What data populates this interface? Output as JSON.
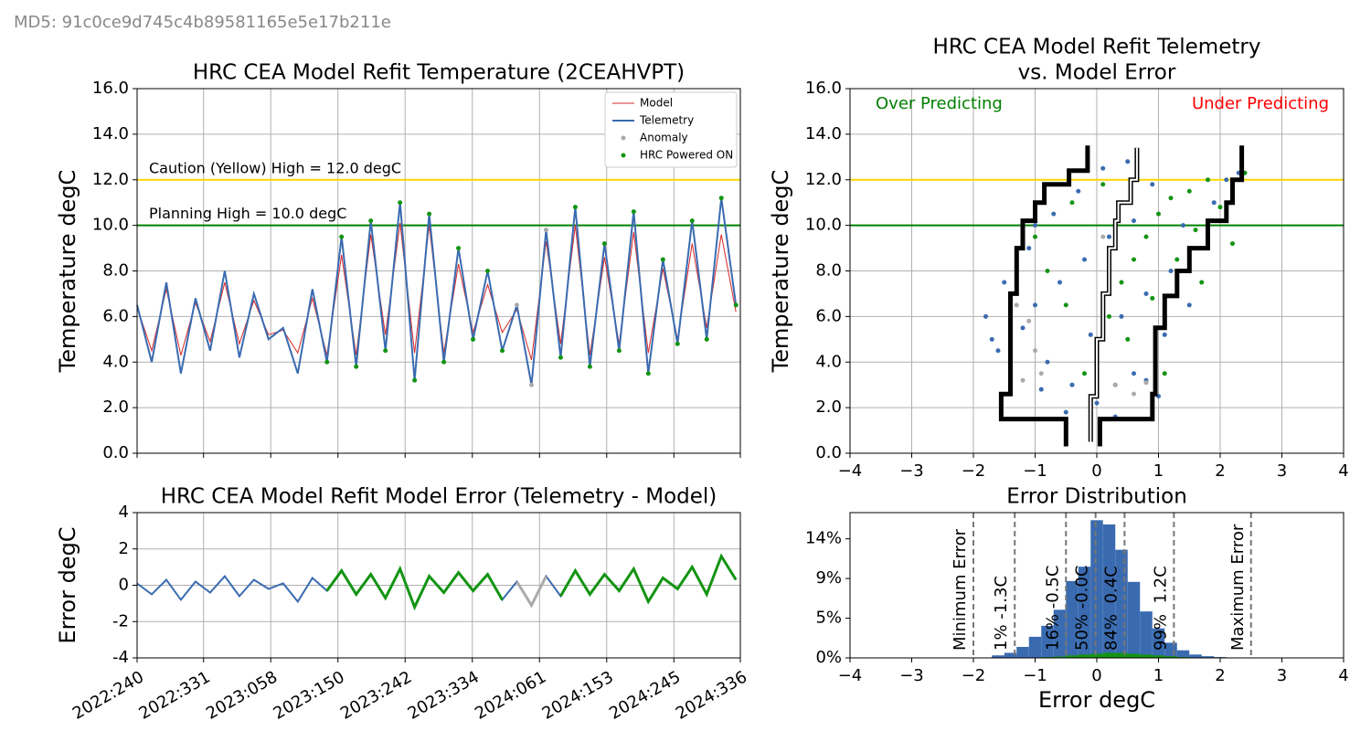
{
  "header": {
    "text": "MD5: 91c0ce9d745c4b89581165e5e17b211e"
  },
  "chart_data": [
    {
      "type": "line",
      "title": "HRC CEA Model Refit Temperature (2CEAHVPT)",
      "ylabel": "Temperature degC",
      "x": [
        "2022:240",
        "2022:260",
        "2022:280",
        "2022:300",
        "2022:320",
        "2022:340",
        "2022:360",
        "2023:015",
        "2023:035",
        "2023:055",
        "2023:075",
        "2023:095",
        "2023:115",
        "2023:135",
        "2023:155",
        "2023:175",
        "2023:195",
        "2023:215",
        "2023:235",
        "2023:255",
        "2023:275",
        "2023:295",
        "2023:315",
        "2023:335",
        "2023:355",
        "2024:010",
        "2024:030",
        "2024:050",
        "2024:070",
        "2024:090",
        "2024:110",
        "2024:130",
        "2024:150",
        "2024:170",
        "2024:190",
        "2024:210",
        "2024:230",
        "2024:250",
        "2024:270",
        "2024:290",
        "2024:310",
        "2024:330"
      ],
      "series": [
        {
          "name": "Model",
          "color": "#d62728",
          "marker": "line",
          "width": 1,
          "values": [
            6.4,
            4.5,
            7.2,
            4.3,
            6.6,
            4.9,
            7.5,
            4.8,
            6.7,
            5.2,
            5.4,
            4.4,
            6.8,
            4.3,
            8.7,
            4.3,
            9.6,
            5.2,
            10.1,
            4.4,
            10.0,
            4.4,
            8.3,
            5.3,
            7.4,
            5.3,
            6.3,
            4.1,
            9.3,
            4.8,
            10.0,
            4.3,
            8.6,
            4.8,
            9.7,
            4.4,
            8.1,
            5.0,
            9.2,
            5.5,
            9.6,
            6.2
          ]
        },
        {
          "name": "Telemetry",
          "color": "#3a6bb0",
          "marker": "line",
          "width": 2,
          "values": [
            6.5,
            4.0,
            7.5,
            3.5,
            6.8,
            4.5,
            8.0,
            4.2,
            7.0,
            5.0,
            5.5,
            3.5,
            7.2,
            4.0,
            9.5,
            3.8,
            10.2,
            4.5,
            11.0,
            3.2,
            10.5,
            4.0,
            9.0,
            5.0,
            8.0,
            4.5,
            6.5,
            3.0,
            9.8,
            4.2,
            10.8,
            3.8,
            9.2,
            4.5,
            10.6,
            3.5,
            8.5,
            4.8,
            10.2,
            5.0,
            11.2,
            6.5
          ]
        },
        {
          "name": "Anomaly",
          "color": "#aaaaaa",
          "marker": "dot",
          "values": [
            null,
            null,
            null,
            null,
            null,
            null,
            null,
            null,
            null,
            null,
            null,
            null,
            null,
            null,
            null,
            null,
            null,
            null,
            null,
            null,
            null,
            null,
            null,
            null,
            null,
            null,
            6.5,
            3.0,
            9.8,
            null,
            null,
            null,
            null,
            null,
            null,
            null,
            null,
            null,
            null,
            null,
            null,
            null
          ]
        },
        {
          "name": "HRC Powered ON",
          "color": "#139413",
          "marker": "dot",
          "values": [
            null,
            null,
            null,
            null,
            null,
            null,
            null,
            null,
            null,
            null,
            null,
            null,
            null,
            4.0,
            9.5,
            3.8,
            10.2,
            4.5,
            11.0,
            3.2,
            10.5,
            4.0,
            9.0,
            5.0,
            8.0,
            4.5,
            null,
            null,
            null,
            4.2,
            10.8,
            3.8,
            9.2,
            4.5,
            10.6,
            3.5,
            8.5,
            4.8,
            10.2,
            5.0,
            11.2,
            6.5
          ]
        }
      ],
      "hlines": [
        {
          "value": 12,
          "color": "#ffd700",
          "label": "Caution (Yellow) High = 12.0 degC"
        },
        {
          "value": 10,
          "color": "#008000",
          "label": "Planning High = 10.0 degC"
        }
      ],
      "xlim": [
        "2022:240",
        "2024:336"
      ],
      "xticks": [
        "2022:240",
        "2022:331",
        "2023:058",
        "2023:150",
        "2023:242",
        "2023:334",
        "2024:061",
        "2024:153",
        "2024:245",
        "2024:336"
      ],
      "show_xtick_labels": false,
      "ylim": [
        0,
        16
      ],
      "yticks": [
        {
          "value": 0,
          "label": "0.0"
        },
        {
          "value": 2,
          "label": "2.0"
        },
        {
          "value": 4,
          "label": "4.0"
        },
        {
          "value": 6,
          "label": "6.0"
        },
        {
          "value": 8,
          "label": "8.0"
        },
        {
          "value": 10,
          "label": "10.0"
        },
        {
          "value": 12,
          "label": "12.0"
        },
        {
          "value": 14,
          "label": "14.0"
        },
        {
          "value": 16,
          "label": "16.0"
        }
      ],
      "grid": true,
      "legend": "upper right"
    },
    {
      "type": "line",
      "title": "HRC CEA Model Refit Model Error (Telemetry - Model)",
      "ylabel": "Error degC",
      "x": [
        "2022:240",
        "2022:260",
        "2022:280",
        "2022:300",
        "2022:320",
        "2022:340",
        "2022:360",
        "2023:015",
        "2023:035",
        "2023:055",
        "2023:075",
        "2023:095",
        "2023:115",
        "2023:135",
        "2023:155",
        "2023:175",
        "2023:195",
        "2023:215",
        "2023:235",
        "2023:255",
        "2023:275",
        "2023:295",
        "2023:315",
        "2023:335",
        "2023:355",
        "2024:010",
        "2024:030",
        "2024:050",
        "2024:070",
        "2024:090",
        "2024:110",
        "2024:130",
        "2024:150",
        "2024:170",
        "2024:190",
        "2024:210",
        "2024:230",
        "2024:250",
        "2024:270",
        "2024:290",
        "2024:310",
        "2024:330"
      ],
      "series": [
        {
          "color": "#3a6bb0",
          "marker": "line",
          "width": 2,
          "values": [
            0.1,
            -0.5,
            0.3,
            -0.8,
            0.2,
            -0.4,
            0.5,
            -0.6,
            0.3,
            -0.2,
            0.1,
            -0.9,
            0.4,
            -0.3,
            0.8,
            -0.5,
            0.6,
            -0.7,
            0.9,
            -1.2,
            0.5,
            -0.4,
            0.7,
            -0.3,
            0.6,
            -0.8,
            0.2,
            -1.1,
            0.5,
            -0.6,
            0.8,
            -0.5,
            0.6,
            -0.3,
            0.9,
            -0.9,
            0.4,
            -0.2,
            1.0,
            -0.5,
            1.6,
            0.3
          ]
        },
        {
          "color": "#aaaaaa",
          "marker": "line",
          "width": 3,
          "values": [
            null,
            null,
            null,
            null,
            null,
            null,
            null,
            null,
            null,
            null,
            null,
            null,
            null,
            null,
            null,
            null,
            null,
            null,
            null,
            null,
            null,
            null,
            null,
            null,
            null,
            null,
            0.2,
            -1.1,
            0.5,
            null,
            null,
            null,
            null,
            null,
            null,
            null,
            null,
            null,
            null,
            null,
            null,
            null
          ]
        },
        {
          "color": "#139413",
          "marker": "line",
          "width": 3,
          "values": [
            null,
            null,
            null,
            null,
            null,
            null,
            null,
            null,
            null,
            null,
            null,
            null,
            null,
            -0.3,
            0.8,
            -0.5,
            0.6,
            -0.7,
            0.9,
            -1.2,
            0.5,
            -0.4,
            0.7,
            -0.3,
            0.6,
            -0.8,
            null,
            null,
            null,
            -0.6,
            0.8,
            -0.5,
            0.6,
            -0.3,
            0.9,
            -0.9,
            0.4,
            -0.2,
            1.0,
            -0.5,
            1.6,
            0.3
          ]
        }
      ],
      "xlim": [
        "2022:240",
        "2024:336"
      ],
      "xticks": [
        "2022:240",
        "2022:331",
        "2023:058",
        "2023:150",
        "2023:242",
        "2023:334",
        "2024:061",
        "2024:153",
        "2024:245",
        "2024:336"
      ],
      "xtick_rotation": 30,
      "ylim": [
        -4,
        4
      ],
      "yticks": [
        -4,
        -2,
        0,
        2,
        4
      ],
      "grid": true
    },
    {
      "type": "scatter",
      "title": [
        "HRC CEA Model Refit Telemetry",
        "vs. Model Error"
      ],
      "ylabel": "Temperature degC",
      "series": [
        {
          "color": "#3a6bb0",
          "x": [
            -1.6,
            -1.4,
            -1.2,
            -1.0,
            -0.8,
            -0.6,
            -0.4,
            -0.2,
            0.0,
            0.2,
            0.4,
            0.6,
            0.8,
            1.0,
            1.2,
            -1.8,
            -1.5,
            -1.1,
            -0.7,
            -0.3,
            0.1,
            0.5,
            0.9,
            1.4,
            1.7,
            1.9,
            2.1,
            -0.9,
            -0.5,
            0.3,
            0.8,
            -1.3,
            -0.1,
            0.6,
            1.1,
            -1.7,
            -1.0,
            0.4,
            2.3,
            1.5
          ],
          "y": [
            4.5,
            3.5,
            5.5,
            6.5,
            4.0,
            7.5,
            3.0,
            8.5,
            2.2,
            9.5,
            6.0,
            3.5,
            7.0,
            2.5,
            8.0,
            6.0,
            7.5,
            9.0,
            10.5,
            11.5,
            12.5,
            12.8,
            11.8,
            10.0,
            9.0,
            11.0,
            12.0,
            2.8,
            1.8,
            1.6,
            3.2,
            8.2,
            5.2,
            10.2,
            5.2,
            5.0,
            10.0,
            11.0,
            12.3,
            6.5
          ]
        },
        {
          "color": "#139413",
          "x": [
            0.0,
            0.2,
            0.4,
            0.6,
            0.8,
            1.0,
            1.2,
            1.5,
            1.8,
            2.4,
            0.5,
            0.9,
            1.3,
            1.6,
            2.0,
            -0.2,
            0.3,
            -0.5,
            -0.8,
            -1.0,
            1.7,
            2.2,
            0.1,
            -0.4,
            1.1
          ],
          "y": [
            4.0,
            6.0,
            7.5,
            8.5,
            9.5,
            10.5,
            11.2,
            11.5,
            12.0,
            12.3,
            5.0,
            6.8,
            8.5,
            9.8,
            10.8,
            3.5,
            3.0,
            6.5,
            8.0,
            9.5,
            7.5,
            9.2,
            11.8,
            11.0,
            3.5
          ]
        },
        {
          "color": "#aaaaaa",
          "x": [
            -1.3,
            -1.1,
            -1.0,
            -0.9,
            0.3,
            0.6,
            0.8,
            0.1,
            -1.4,
            -1.2
          ],
          "y": [
            6.5,
            5.8,
            4.5,
            3.5,
            3.0,
            2.6,
            3.1,
            9.5,
            4.8,
            3.2
          ]
        }
      ],
      "steps": [
        {
          "color": "#000000",
          "x": [
            -0.5,
            -0.5,
            -1.55,
            -1.55,
            -1.4,
            -1.4,
            -1.3,
            -1.3,
            -1.2,
            -1.2,
            -1.0,
            -1.0,
            -0.85,
            -0.85,
            -0.45,
            -0.45,
            -0.15,
            -0.15
          ],
          "y": [
            0.3,
            1.5,
            1.5,
            2.6,
            2.6,
            7.0,
            7.0,
            9.0,
            9.0,
            10.2,
            10.2,
            11.0,
            11.0,
            11.8,
            11.8,
            12.4,
            12.4,
            13.5
          ]
        },
        {
          "color": "#ffffff",
          "x": [
            -0.1,
            -0.1,
            0.0,
            0.0,
            0.1,
            0.1,
            0.2,
            0.2,
            0.3,
            0.3,
            0.35,
            0.35,
            0.55,
            0.55,
            0.65,
            0.65
          ],
          "y": [
            0.5,
            2.5,
            2.5,
            5.0,
            5.0,
            7.0,
            7.0,
            9.0,
            9.0,
            10.2,
            10.2,
            11.0,
            11.0,
            12.0,
            12.0,
            13.4
          ]
        },
        {
          "color": "#000000",
          "x": [
            0.05,
            0.05,
            0.9,
            0.9,
            0.95,
            0.95,
            1.1,
            1.1,
            1.3,
            1.3,
            1.5,
            1.5,
            1.8,
            1.8,
            2.1,
            2.1,
            2.2,
            2.2,
            2.35,
            2.35
          ],
          "y": [
            0.3,
            1.5,
            1.5,
            2.6,
            2.6,
            5.5,
            5.5,
            6.9,
            6.9,
            8.0,
            8.0,
            9.0,
            9.0,
            10.2,
            10.2,
            11.0,
            11.0,
            12.0,
            12.0,
            13.5
          ]
        }
      ],
      "hlines": [
        {
          "value": 12,
          "color": "#ffd700"
        },
        {
          "value": 10,
          "color": "#008000"
        }
      ],
      "annotations": [
        {
          "text": "Over Predicting",
          "color": "#008000",
          "corner": "upper left"
        },
        {
          "text": "Under Predicting",
          "color": "#ff0000",
          "corner": "upper right"
        }
      ],
      "xlim": [
        -4,
        4
      ],
      "xticks": [
        {
          "value": -4,
          "label": "−4"
        },
        {
          "value": -3,
          "label": "−3"
        },
        {
          "value": -2,
          "label": "−2"
        },
        {
          "value": -1,
          "label": "−1"
        },
        0,
        1,
        2,
        3,
        4
      ],
      "ylim": [
        0,
        16
      ],
      "yticks": [
        {
          "value": 0,
          "label": "0.0"
        },
        {
          "value": 2,
          "label": "2.0"
        },
        {
          "value": 4,
          "label": "4.0"
        },
        {
          "value": 6,
          "label": "6.0"
        },
        {
          "value": 8,
          "label": "8.0"
        },
        {
          "value": 10,
          "label": "10.0"
        },
        {
          "value": 12,
          "label": "12.0"
        },
        {
          "value": 14,
          "label": "14.0"
        },
        {
          "value": 16,
          "label": "16.0"
        }
      ],
      "grid": true
    },
    {
      "type": "histogram",
      "title": "Error Distribution",
      "xlabel": "Error degC",
      "bins": [
        -1.7,
        -1.5,
        -1.3,
        -1.1,
        -0.9,
        -0.7,
        -0.5,
        -0.3,
        -0.1,
        0.1,
        0.3,
        0.5,
        0.7,
        0.9,
        1.1,
        1.3,
        1.5,
        1.7,
        1.9,
        2.1
      ],
      "series": [
        {
          "color": "#3a6bb0",
          "values": [
            0.3,
            0.6,
            1.3,
            2.5,
            3.8,
            5.7,
            9.1,
            10.8,
            16.3,
            15.8,
            12.8,
            9.0,
            5.5,
            3.5,
            1.8,
            0.9,
            0.4,
            0.2,
            0.1
          ]
        },
        {
          "color": "#139413",
          "values": [
            0,
            0,
            0,
            0.05,
            0.1,
            0.15,
            0.3,
            0.4,
            0.5,
            0.6,
            0.6,
            0.5,
            0.4,
            0.3,
            0.2,
            0.1,
            0.05,
            0,
            0
          ]
        }
      ],
      "vlines": [
        {
          "value": -2.0,
          "label": "Minimum Error"
        },
        {
          "value": -1.33,
          "label": "1% -1.3C"
        },
        {
          "value": -0.5,
          "label": "16% -0.5C"
        },
        {
          "value": -0.02,
          "label": "50% -0.0C"
        },
        {
          "value": 0.45,
          "label": "84%  0.4C"
        },
        {
          "value": 1.25,
          "label": "99%  1.2C"
        },
        {
          "value": 2.5,
          "label": "Maximum Error"
        }
      ],
      "xlim": [
        -4,
        4
      ],
      "xticks": [
        {
          "value": -4,
          "label": "−4"
        },
        {
          "value": -3,
          "label": "−3"
        },
        {
          "value": -2,
          "label": "−2"
        },
        {
          "value": -1,
          "label": "−1"
        },
        0,
        1,
        2,
        3,
        4
      ],
      "ylim": [
        0,
        17.2
      ],
      "yticks": [
        {
          "value": 0,
          "label": "0%"
        },
        {
          "value": 4.7,
          "label": "5%"
        },
        {
          "value": 9.4,
          "label": "9%"
        },
        {
          "value": 14.1,
          "label": "14%"
        }
      ],
      "grid": false
    }
  ]
}
